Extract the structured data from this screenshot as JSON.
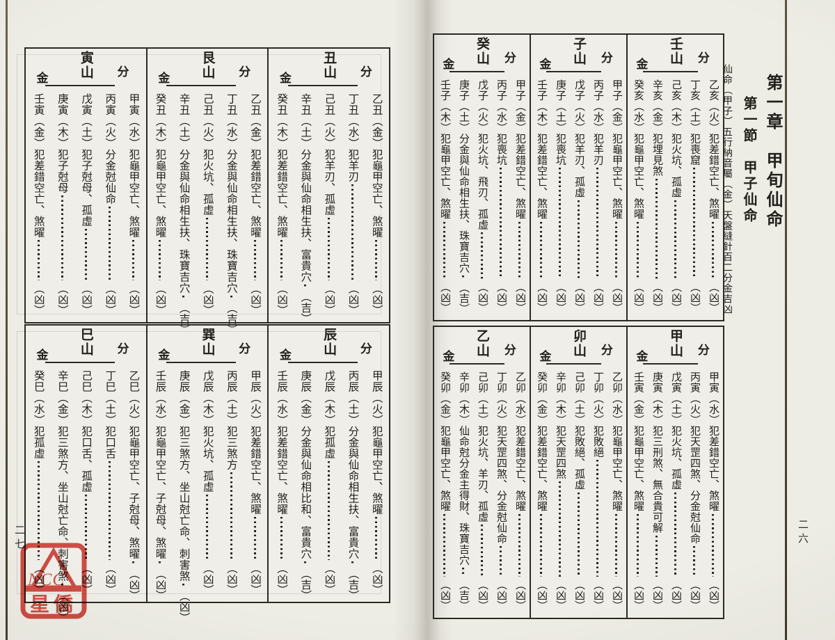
{
  "colors": {
    "stamp_red": "#d8453c",
    "ink": "#23211c",
    "paper": "#eae8e0"
  },
  "stamp": {
    "text1": "NCC",
    "text2": "星僑",
    "color": "#d8453c"
  },
  "pages": {
    "right": {
      "page_number": "二六",
      "chapter": "第一章　甲旬仙命",
      "section": "第一節　甲子仙命",
      "subtitle": "仙命（甲子）五行納音屬（金）天盤縫針百二分金吉凶",
      "tables": [
        {
          "groups": [
            {
              "name": "壬山",
              "sub_r": "分",
              "sub_l": "金",
              "entries": [
                {
                  "gz": "乙亥",
                  "el": "（火）",
                  "desc": "犯差錯空亡、煞曜",
                  "v": "（凶）"
                },
                {
                  "gz": "丁亥",
                  "el": "（土）",
                  "desc": "犯喪窟",
                  "v": "（凶）"
                },
                {
                  "gz": "己亥",
                  "el": "（木）",
                  "desc": "犯火坑、孤虛",
                  "v": "（凶）"
                },
                {
                  "gz": "辛亥",
                  "el": "（金）",
                  "desc": "犯埋見煞",
                  "v": "（凶）"
                },
                {
                  "gz": "癸亥",
                  "el": "（水）",
                  "desc": "犯龜甲空亡、煞曜",
                  "v": "（凶）"
                }
              ]
            },
            {
              "name": "子山",
              "sub_r": "分",
              "sub_l": "金",
              "entries": [
                {
                  "gz": "甲子",
                  "el": "（金）",
                  "desc": "犯龜甲空亡、煞曜",
                  "v": "（凶）"
                },
                {
                  "gz": "丙子",
                  "el": "（水）",
                  "desc": "犯羊刃",
                  "v": "（凶）"
                },
                {
                  "gz": "戊子",
                  "el": "（火）",
                  "desc": "犯羊刃、孤虛",
                  "v": "（凶）"
                },
                {
                  "gz": "庚子",
                  "el": "（土）",
                  "desc": "犯喪坑",
                  "v": "（凶）"
                },
                {
                  "gz": "壬子",
                  "el": "（木）",
                  "desc": "犯差錯空亡、煞曜",
                  "v": "（凶）"
                }
              ]
            },
            {
              "name": "癸山",
              "sub_r": "分",
              "sub_l": "金",
              "entries": [
                {
                  "gz": "甲子",
                  "el": "（金）",
                  "desc": "犯差錯空亡、煞曜",
                  "v": "（凶）"
                },
                {
                  "gz": "丙子",
                  "el": "（水）",
                  "desc": "犯喪坑",
                  "v": "（凶）"
                },
                {
                  "gz": "戊子",
                  "el": "（火）",
                  "desc": "犯火坑、飛刃、孤虛",
                  "v": "（凶）"
                },
                {
                  "gz": "庚子",
                  "el": "（土）",
                  "desc": "分金與仙命相生扶、珠寶吉穴",
                  "v": "（吉）"
                },
                {
                  "gz": "壬子",
                  "el": "（木）",
                  "desc": "犯龜甲空亡、煞曜",
                  "v": "（凶）"
                }
              ]
            }
          ]
        },
        {
          "groups": [
            {
              "name": "甲山",
              "sub_r": "分",
              "sub_l": "金",
              "entries": [
                {
                  "gz": "甲寅",
                  "el": "（水）",
                  "desc": "犯差錯空亡、煞曜",
                  "v": "（凶）"
                },
                {
                  "gz": "丙寅",
                  "el": "（火）",
                  "desc": "犯天罡四煞、分金尅仙命",
                  "v": "（凶）"
                },
                {
                  "gz": "戊寅",
                  "el": "（土）",
                  "desc": "犯火坑、孤虛",
                  "v": "（凶）"
                },
                {
                  "gz": "庚寅",
                  "el": "（木）",
                  "desc": "犯三刑煞、無合貴可解",
                  "v": "（凶）"
                },
                {
                  "gz": "壬寅",
                  "el": "（金）",
                  "desc": "犯龜甲空亡、煞曜",
                  "v": "（凶）"
                }
              ]
            },
            {
              "name": "卯山",
              "sub_r": "分",
              "sub_l": "金",
              "entries": [
                {
                  "gz": "乙卯",
                  "el": "（水）",
                  "desc": "犯龜甲空亡、煞曜",
                  "v": "（凶）"
                },
                {
                  "gz": "丁卯",
                  "el": "（火）",
                  "desc": "犯敗絕",
                  "v": "（凶）"
                },
                {
                  "gz": "己卯",
                  "el": "（土）",
                  "desc": "犯敗絕、孤虛",
                  "v": "（凶）"
                },
                {
                  "gz": "辛卯",
                  "el": "（木）",
                  "desc": "犯天罡四煞",
                  "v": "（凶）"
                },
                {
                  "gz": "癸卯",
                  "el": "（金）",
                  "desc": "犯差錯空亡、煞曜",
                  "v": "（凶）"
                }
              ]
            },
            {
              "name": "乙山",
              "sub_r": "分",
              "sub_l": "金",
              "entries": [
                {
                  "gz": "乙卯",
                  "el": "（水）",
                  "desc": "犯差錯空亡、煞曜",
                  "v": "（凶）"
                },
                {
                  "gz": "丁卯",
                  "el": "（火）",
                  "desc": "犯天罡四煞、分金尅仙命",
                  "v": "（凶）"
                },
                {
                  "gz": "己卯",
                  "el": "（土）",
                  "desc": "犯火坑、羊刃、孤虛",
                  "v": "（凶）"
                },
                {
                  "gz": "辛卯",
                  "el": "（木）",
                  "desc": "仙命尅分金主得財、珠寶吉穴",
                  "v": "（吉）"
                },
                {
                  "gz": "癸卯",
                  "el": "（金）",
                  "desc": "犯龜甲空亡、煞曜",
                  "v": "（凶）"
                }
              ]
            }
          ]
        }
      ]
    },
    "left": {
      "page_number": "二七",
      "tables": [
        {
          "groups": [
            {
              "name": "丑山",
              "sub_r": "分",
              "sub_l": "金",
              "entries": [
                {
                  "gz": "乙丑",
                  "el": "（金）",
                  "desc": "犯龜甲空亡、煞曜",
                  "v": "（凶）"
                },
                {
                  "gz": "丁丑",
                  "el": "（水）",
                  "desc": "犯羊刃",
                  "v": "（凶）"
                },
                {
                  "gz": "己丑",
                  "el": "（火）",
                  "desc": "犯羊刃、孤虛",
                  "v": "（凶）"
                },
                {
                  "gz": "辛丑",
                  "el": "（土）",
                  "desc": "分金與仙命相生扶、富貴穴",
                  "v": "（吉）"
                },
                {
                  "gz": "癸丑",
                  "el": "（木）",
                  "desc": "犯差錯空亡、煞曜",
                  "v": "（凶）"
                }
              ]
            },
            {
              "name": "艮山",
              "sub_r": "分",
              "sub_l": "金",
              "entries": [
                {
                  "gz": "乙丑",
                  "el": "（金）",
                  "desc": "犯差錯空亡、煞曜",
                  "v": "（凶）"
                },
                {
                  "gz": "丁丑",
                  "el": "（水）",
                  "desc": "分金與仙命相生扶、珠寶吉穴",
                  "v": "（吉）"
                },
                {
                  "gz": "己丑",
                  "el": "（火）",
                  "desc": "犯火坑、孤虛",
                  "v": "（凶）"
                },
                {
                  "gz": "辛丑",
                  "el": "（土）",
                  "desc": "分金與仙命相生扶、珠寶吉穴",
                  "v": "（吉）"
                },
                {
                  "gz": "癸丑",
                  "el": "（木）",
                  "desc": "犯龜甲空亡、煞曜",
                  "v": "（凶）"
                }
              ]
            },
            {
              "name": "寅山",
              "sub_r": "分",
              "sub_l": "金",
              "entries": [
                {
                  "gz": "甲寅",
                  "el": "（水）",
                  "desc": "犯龜甲空亡、煞曜",
                  "v": "（凶）"
                },
                {
                  "gz": "丙寅",
                  "el": "（火）",
                  "desc": "分金尅仙命",
                  "v": "（凶）"
                },
                {
                  "gz": "戊寅",
                  "el": "（土）",
                  "desc": "犯子尅母、孤虛",
                  "v": "（凶）"
                },
                {
                  "gz": "庚寅",
                  "el": "（木）",
                  "desc": "犯子尅母",
                  "v": "（凶）"
                },
                {
                  "gz": "壬寅",
                  "el": "（金）",
                  "desc": "犯差錯空亡、煞曜",
                  "v": "（凶）"
                }
              ]
            }
          ]
        },
        {
          "groups": [
            {
              "name": "辰山",
              "sub_r": "分",
              "sub_l": "金",
              "entries": [
                {
                  "gz": "甲辰",
                  "el": "（火）",
                  "desc": "犯龜甲空亡、煞曜",
                  "v": "（凶）"
                },
                {
                  "gz": "丙辰",
                  "el": "（土）",
                  "desc": "分金與仙命相生扶、富貴穴",
                  "v": "（吉）"
                },
                {
                  "gz": "戊辰",
                  "el": "（木）",
                  "desc": "犯孤虛",
                  "v": "（凶）"
                },
                {
                  "gz": "庚辰",
                  "el": "（金）",
                  "desc": "分金與仙命相比和、富貴穴",
                  "v": "（吉）"
                },
                {
                  "gz": "壬辰",
                  "el": "（水）",
                  "desc": "犯差錯空亡、煞曜",
                  "v": "（凶）"
                }
              ]
            },
            {
              "name": "巽山",
              "sub_r": "分",
              "sub_l": "金",
              "entries": [
                {
                  "gz": "甲辰",
                  "el": "（火）",
                  "desc": "犯差錯空亡、煞曜",
                  "v": "（凶）"
                },
                {
                  "gz": "丙辰",
                  "el": "（土）",
                  "desc": "犯三煞方",
                  "v": "（凶）"
                },
                {
                  "gz": "戊辰",
                  "el": "（木）",
                  "desc": "犯火坑、孤虛",
                  "v": "（凶）"
                },
                {
                  "gz": "庚辰",
                  "el": "（金）",
                  "desc": "犯三煞方、坐山尅亡命、刺害煞",
                  "v": "（凶）"
                },
                {
                  "gz": "壬辰",
                  "el": "（水）",
                  "desc": "犯龜甲空亡、子尅母、煞曜",
                  "v": "（凶）"
                }
              ]
            },
            {
              "name": "巳山",
              "sub_r": "分",
              "sub_l": "金",
              "entries": [
                {
                  "gz": "乙巳",
                  "el": "（火）",
                  "desc": "犯龜甲空亡、子尅母、煞曜",
                  "v": "（凶）"
                },
                {
                  "gz": "丁巳",
                  "el": "（土）",
                  "desc": "犯口舌",
                  "v": "（凶）"
                },
                {
                  "gz": "己巳",
                  "el": "（木）",
                  "desc": "犯口舌、孤虛",
                  "v": "（凶）"
                },
                {
                  "gz": "辛巳",
                  "el": "（金）",
                  "desc": "犯三煞方、坐山尅亡命、刺害煞",
                  "v": "（凶）"
                },
                {
                  "gz": "癸巳",
                  "el": "（水）",
                  "desc": "犯孤虛",
                  "v": "（凶）"
                }
              ]
            }
          ]
        }
      ]
    }
  }
}
